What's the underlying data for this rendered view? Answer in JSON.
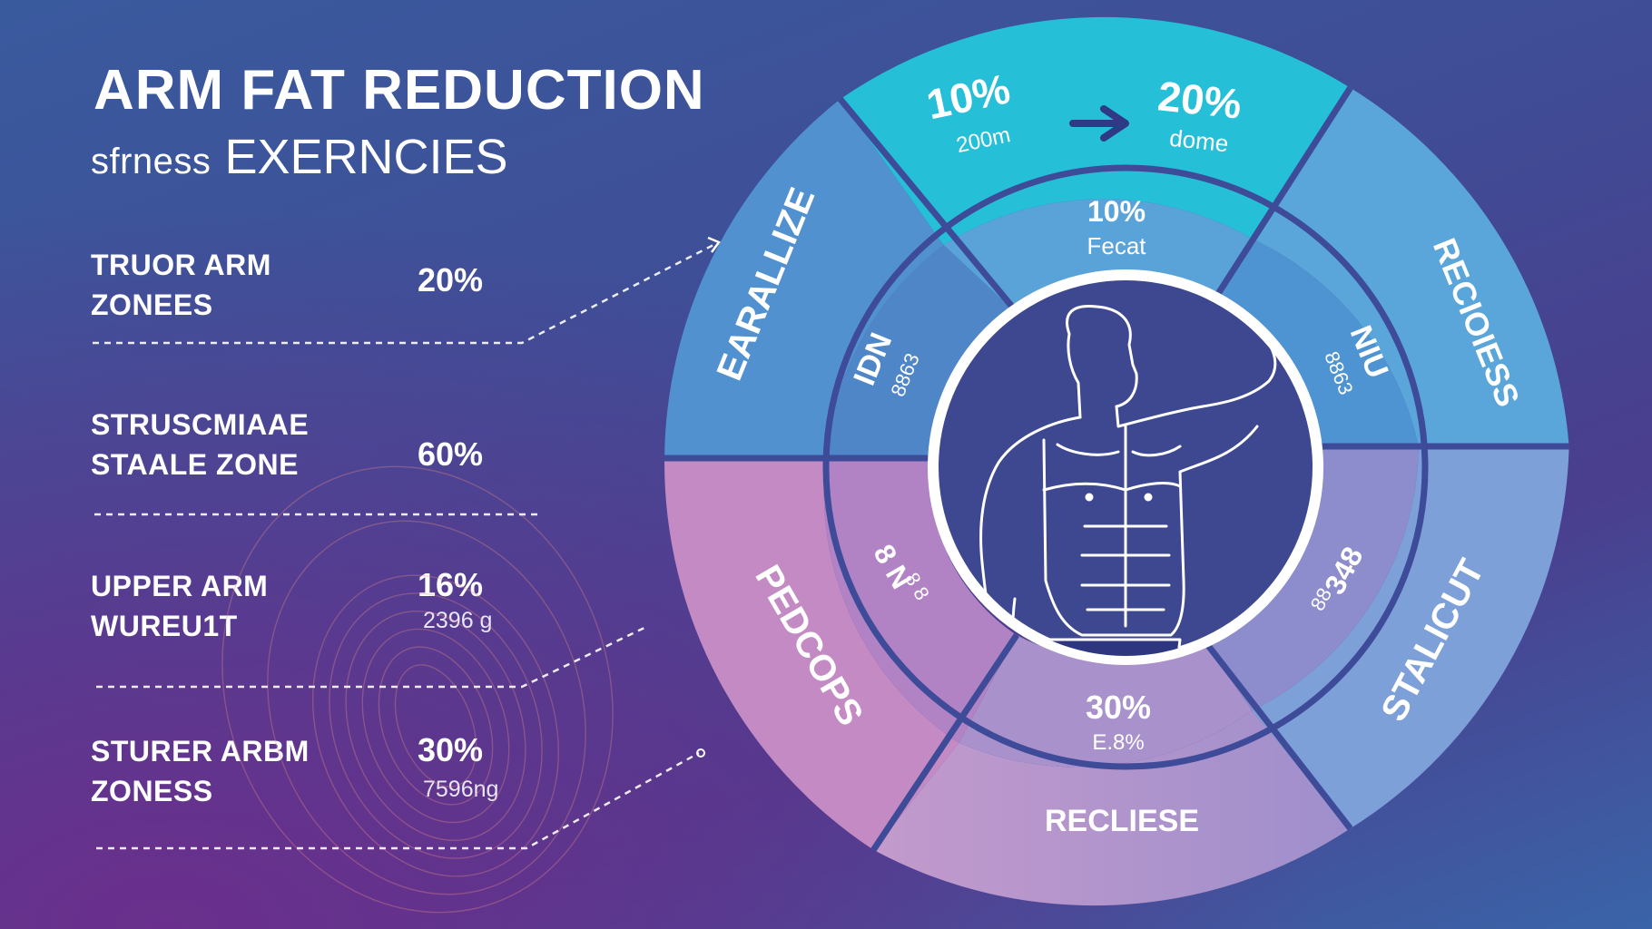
{
  "header": {
    "title": "ARM FAT REDUCTION",
    "subtitle_prefix": "sfrness",
    "subtitle_main": "EXERNCIES"
  },
  "rows": [
    {
      "label_line1": "TRUOR ARM",
      "label_line2": "ZONEES",
      "value": "20%",
      "sub": ""
    },
    {
      "label_line1": "STRUSCMIAAE",
      "label_line2": "STAALE ZONE",
      "value": "60%",
      "sub": ""
    },
    {
      "label_line1": "UPPER ARM",
      "label_line2": "WUREU1T",
      "value": "16%",
      "sub": "2396 g"
    },
    {
      "label_line1": "STURER ARBM",
      "label_line2": "ZONESS",
      "value": "30%",
      "sub": "7596ng"
    }
  ],
  "wheel": {
    "top_left": {
      "value": "10%",
      "sub": "200m"
    },
    "top_right": {
      "value": "20%",
      "sub": "dome"
    },
    "inner_top": {
      "value": "10%",
      "sub": "Fecat"
    },
    "outer_left": "EARALLIZE",
    "outer_right": "RECIOIESS",
    "outer_lower_left": "PEDCOPS",
    "outer_lower_right": "STALICUT",
    "outer_bottom": "RECLIESE",
    "inner_upper_left": {
      "main": "IDN",
      "sub": "8863"
    },
    "inner_upper_right": {
      "main": "NIU",
      "sub": "8863"
    },
    "inner_lower_left": {
      "main": "8 N",
      "sub": "8 8"
    },
    "inner_lower_right": {
      "main": "348",
      "sub": "88"
    },
    "inner_bottom": {
      "value": "30%",
      "sub": "E.8%"
    }
  },
  "colors": {
    "teal": "#26bfd8",
    "light_blue": "#5aa6da",
    "mid_blue": "#4f86c8",
    "pink": "#c48ac4",
    "lavender": "#a387c6",
    "ring_line": "#3d4b98",
    "center": "#3d4890"
  }
}
